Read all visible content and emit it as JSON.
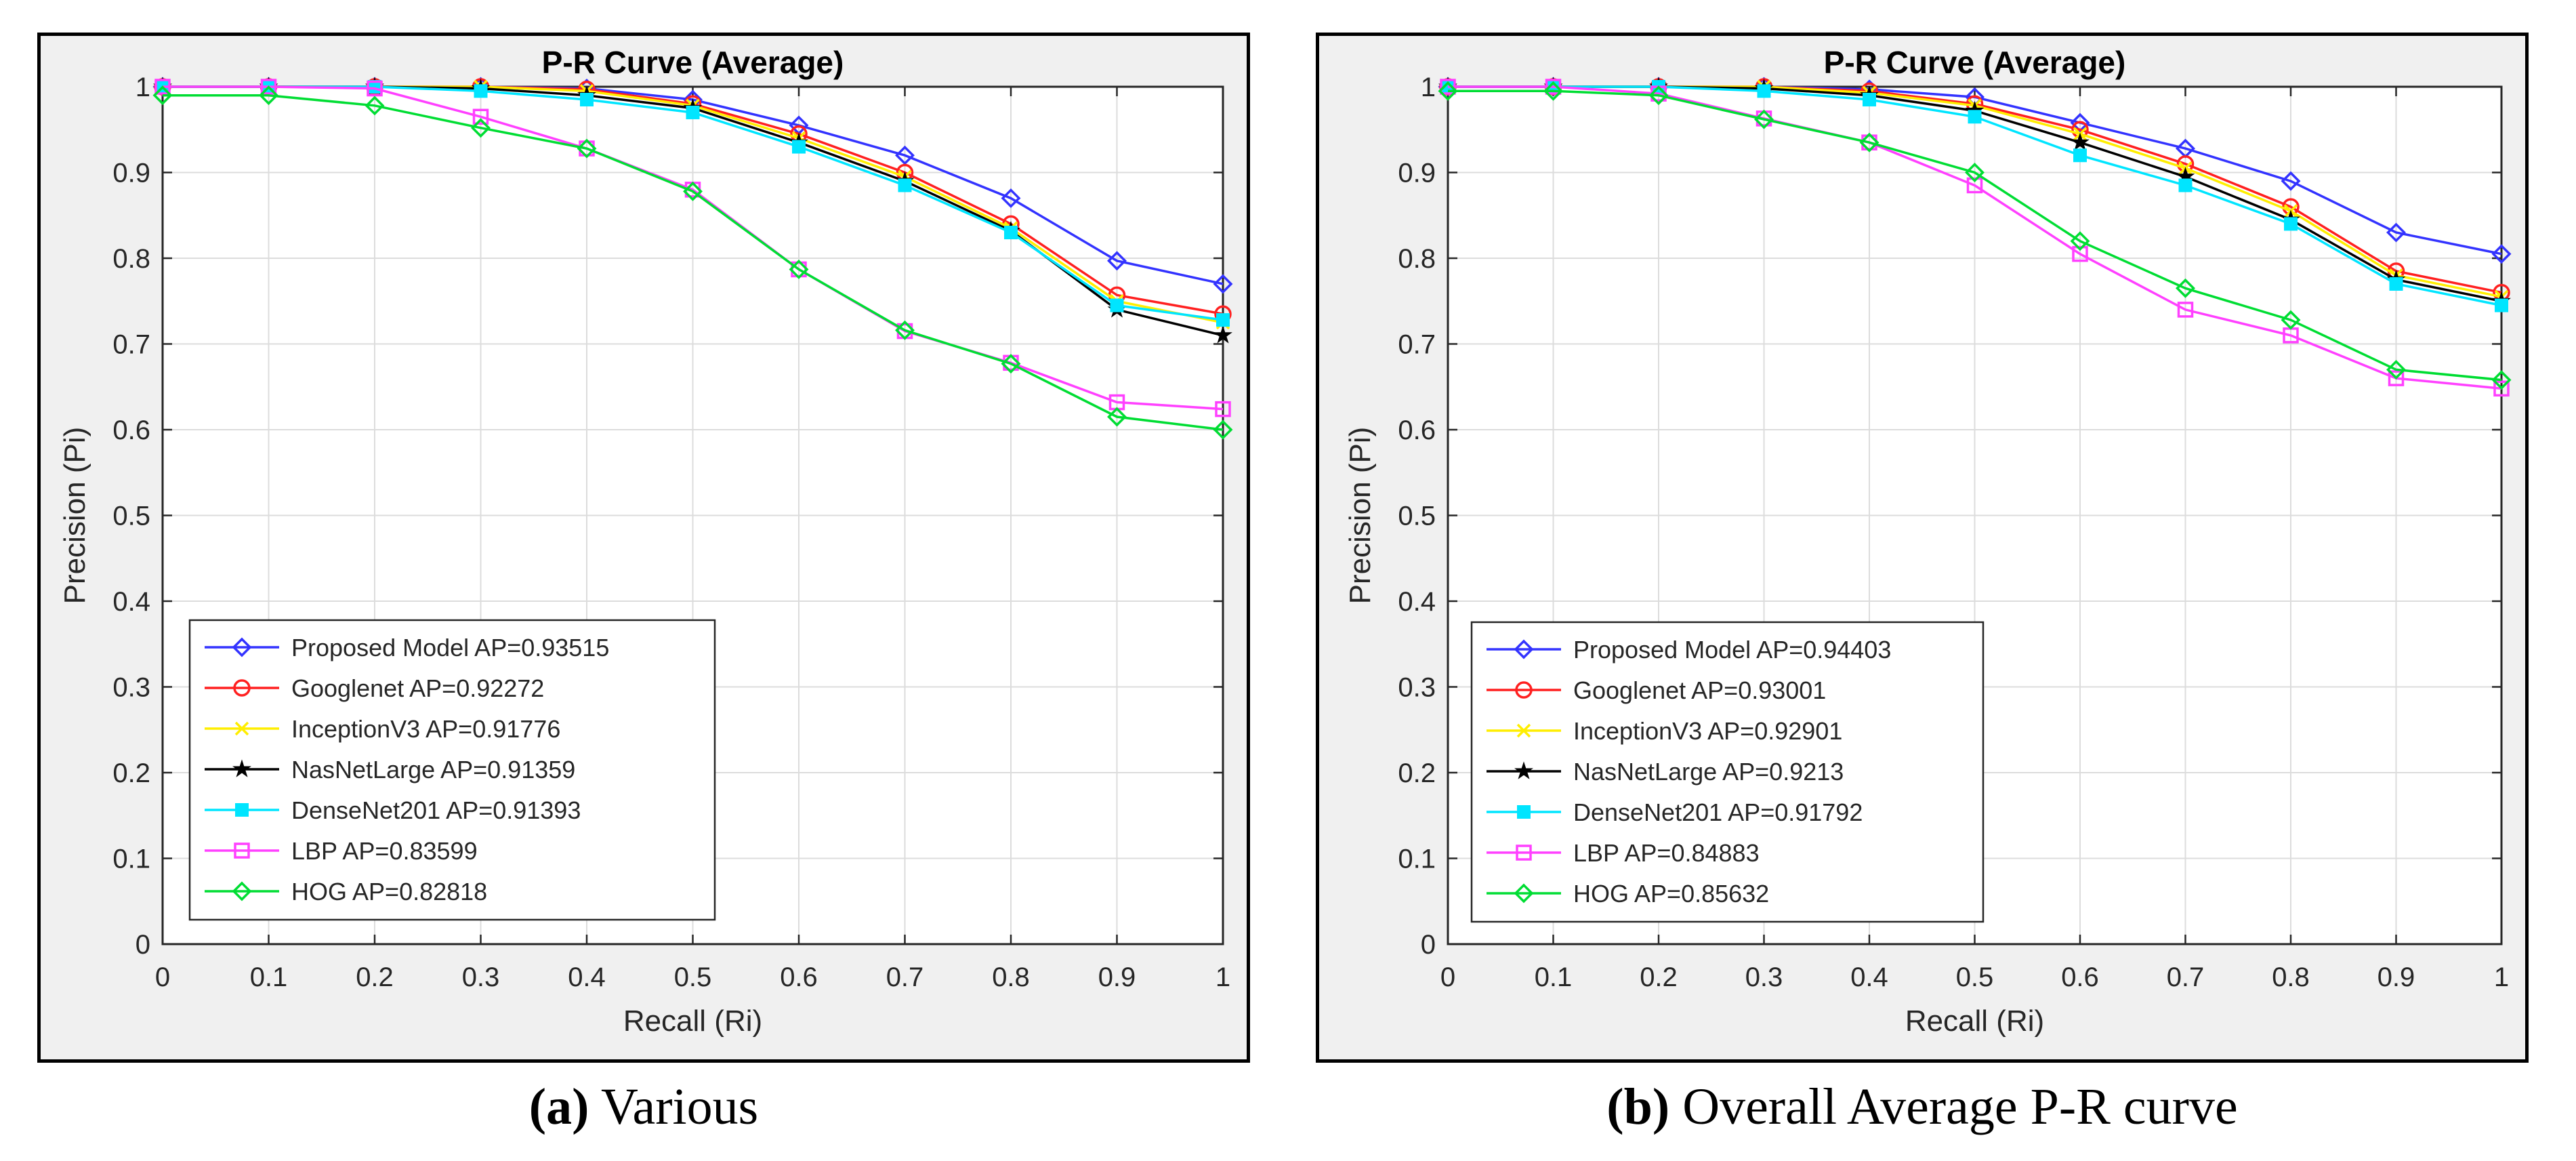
{
  "figures": [
    {
      "caption_label": "(a)",
      "caption_text": "Various"
    },
    {
      "caption_label": "(b)",
      "caption_text": "Overall Average P-R curve"
    }
  ],
  "chart_data": [
    {
      "type": "line",
      "title": "P-R Curve (Average)",
      "xlabel": "Recall (Ri)",
      "ylabel": "Precision (Pi)",
      "xlim": [
        0,
        1
      ],
      "ylim": [
        0,
        1
      ],
      "xticks": [
        "0",
        "0.1",
        "0.2",
        "0.3",
        "0.4",
        "0.5",
        "0.6",
        "0.7",
        "0.8",
        "0.9",
        "1"
      ],
      "yticks": [
        "0",
        "0.1",
        "0.2",
        "0.3",
        "0.4",
        "0.5",
        "0.6",
        "0.7",
        "0.8",
        "0.9",
        "1"
      ],
      "grid": true,
      "legend_position": "bottom-left",
      "x": [
        0,
        0.1,
        0.2,
        0.3,
        0.4,
        0.5,
        0.6,
        0.7,
        0.8,
        0.9,
        1
      ],
      "series": [
        {
          "name": "Proposed Model AP=0.93515",
          "color": "#3333ff",
          "marker": "diamond",
          "values": [
            1.0,
            1.0,
            1.0,
            1.0,
            0.998,
            0.985,
            0.955,
            0.92,
            0.87,
            0.797,
            0.77
          ]
        },
        {
          "name": "Googlenet AP=0.92272",
          "color": "#ff2020",
          "marker": "circle",
          "values": [
            1.0,
            1.0,
            1.0,
            1.0,
            0.997,
            0.98,
            0.945,
            0.9,
            0.84,
            0.757,
            0.735
          ]
        },
        {
          "name": "InceptionV3 AP=0.91776",
          "color": "#ffee00",
          "marker": "x",
          "values": [
            1.0,
            1.0,
            1.0,
            1.0,
            0.995,
            0.978,
            0.94,
            0.895,
            0.835,
            0.75,
            0.725
          ]
        },
        {
          "name": "NasNetLarge AP=0.91359",
          "color": "#000000",
          "marker": "star",
          "values": [
            1.0,
            1.0,
            1.0,
            0.998,
            0.99,
            0.975,
            0.935,
            0.89,
            0.832,
            0.74,
            0.71
          ]
        },
        {
          "name": "DenseNet201 AP=0.91393",
          "color": "#00e5ff",
          "marker": "square-filled",
          "values": [
            1.0,
            1.0,
            1.0,
            0.995,
            0.985,
            0.97,
            0.93,
            0.885,
            0.83,
            0.745,
            0.728
          ]
        },
        {
          "name": "LBP AP=0.83599",
          "color": "#ff40ff",
          "marker": "square",
          "values": [
            1.0,
            1.0,
            0.998,
            0.965,
            0.928,
            0.88,
            0.787,
            0.715,
            0.678,
            0.632,
            0.624
          ]
        },
        {
          "name": "HOG AP=0.82818",
          "color": "#00dd33",
          "marker": "diamond",
          "values": [
            0.99,
            0.99,
            0.978,
            0.952,
            0.928,
            0.878,
            0.787,
            0.716,
            0.677,
            0.615,
            0.6
          ]
        }
      ]
    },
    {
      "type": "line",
      "title": "P-R Curve (Average)",
      "xlabel": "Recall (Ri)",
      "ylabel": "Precision (Pi)",
      "xlim": [
        0,
        1
      ],
      "ylim": [
        0,
        1
      ],
      "xticks": [
        "0",
        "0.1",
        "0.2",
        "0.3",
        "0.4",
        "0.5",
        "0.6",
        "0.7",
        "0.8",
        "0.9",
        "1"
      ],
      "yticks": [
        "0",
        "0.1",
        "0.2",
        "0.3",
        "0.4",
        "0.5",
        "0.6",
        "0.7",
        "0.8",
        "0.9",
        "1"
      ],
      "grid": true,
      "legend_position": "bottom-left",
      "x": [
        0,
        0.1,
        0.2,
        0.3,
        0.4,
        0.5,
        0.6,
        0.7,
        0.8,
        0.9,
        1
      ],
      "series": [
        {
          "name": "Proposed Model AP=0.94403",
          "color": "#3333ff",
          "marker": "diamond",
          "values": [
            1.0,
            1.0,
            1.0,
            1.0,
            0.997,
            0.988,
            0.958,
            0.928,
            0.89,
            0.83,
            0.805
          ]
        },
        {
          "name": "Googlenet AP=0.93001",
          "color": "#ff2020",
          "marker": "circle",
          "values": [
            1.0,
            1.0,
            1.0,
            1.0,
            0.995,
            0.98,
            0.95,
            0.91,
            0.86,
            0.785,
            0.76
          ]
        },
        {
          "name": "InceptionV3 AP=0.92901",
          "color": "#ffee00",
          "marker": "x",
          "values": [
            1.0,
            1.0,
            1.0,
            1.0,
            0.993,
            0.978,
            0.945,
            0.905,
            0.855,
            0.78,
            0.755
          ]
        },
        {
          "name": "NasNetLarge AP=0.9213",
          "color": "#000000",
          "marker": "star",
          "values": [
            1.0,
            1.0,
            1.0,
            0.998,
            0.99,
            0.972,
            0.935,
            0.895,
            0.845,
            0.775,
            0.75
          ]
        },
        {
          "name": "DenseNet201 AP=0.91792",
          "color": "#00e5ff",
          "marker": "square-filled",
          "values": [
            1.0,
            1.0,
            1.0,
            0.995,
            0.985,
            0.965,
            0.92,
            0.885,
            0.84,
            0.77,
            0.745
          ]
        },
        {
          "name": "LBP AP=0.84883",
          "color": "#ff40ff",
          "marker": "square",
          "values": [
            1.0,
            1.0,
            0.992,
            0.963,
            0.935,
            0.885,
            0.805,
            0.74,
            0.71,
            0.66,
            0.648
          ]
        },
        {
          "name": "HOG AP=0.85632",
          "color": "#00dd33",
          "marker": "diamond",
          "values": [
            0.995,
            0.995,
            0.99,
            0.962,
            0.935,
            0.9,
            0.82,
            0.765,
            0.728,
            0.67,
            0.658
          ]
        }
      ]
    }
  ]
}
